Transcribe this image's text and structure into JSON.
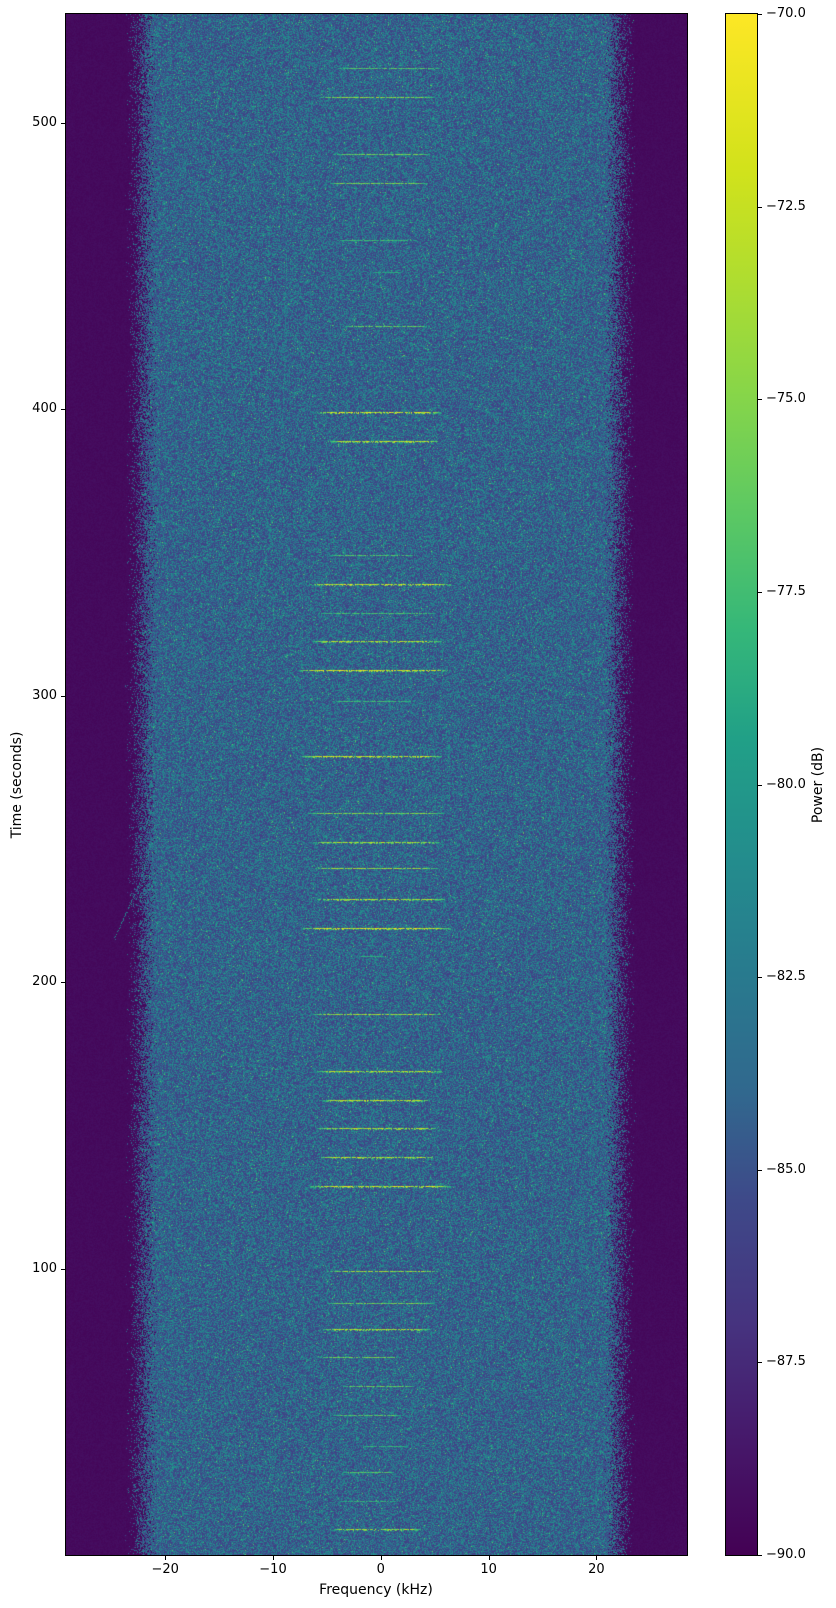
{
  "chart_data": {
    "type": "heatmap",
    "title": "",
    "xlabel": "Frequency (kHz)",
    "ylabel": "Time (seconds)",
    "colorbar_label": "Power (dB)",
    "colormap": "viridis",
    "xlim": [
      -29.2,
      28.4
    ],
    "ylim": [
      0,
      538
    ],
    "clim": [
      -90,
      -70
    ],
    "x_ticks": [
      {
        "v": -20,
        "label": "−20"
      },
      {
        "v": -10,
        "label": "−10"
      },
      {
        "v": 0,
        "label": "0"
      },
      {
        "v": 10,
        "label": "10"
      },
      {
        "v": 20,
        "label": "20"
      }
    ],
    "y_ticks": [
      {
        "v": 100,
        "label": "100"
      },
      {
        "v": 200,
        "label": "200"
      },
      {
        "v": 300,
        "label": "300"
      },
      {
        "v": 400,
        "label": "400"
      },
      {
        "v": 500,
        "label": "500"
      }
    ],
    "colorbar_ticks": [
      {
        "v": -70.0,
        "label": "−70.0"
      },
      {
        "v": -72.5,
        "label": "−72.5"
      },
      {
        "v": -75.0,
        "label": "−75.0"
      },
      {
        "v": -77.5,
        "label": "−77.5"
      },
      {
        "v": -80.0,
        "label": "−80.0"
      },
      {
        "v": -82.5,
        "label": "−82.5"
      },
      {
        "v": -85.0,
        "label": "−85.0"
      },
      {
        "v": -87.5,
        "label": "−87.5"
      },
      {
        "v": -90.0,
        "label": "−90.0"
      }
    ],
    "noise": {
      "floor_db": -85,
      "background_db": -90,
      "band_full_khz": 20.6,
      "band_zero_khz": 23.8
    },
    "bursts": [
      {
        "t": 9,
        "f0": -4.4,
        "f1": 3.6,
        "a": 0.75
      },
      {
        "t": 19,
        "f0": -3.8,
        "f1": 1.5,
        "a": 0.3
      },
      {
        "t": 29,
        "f0": -3.5,
        "f1": 1.1,
        "a": 0.45
      },
      {
        "t": 38,
        "f0": -1.7,
        "f1": 2.4,
        "a": 0.3
      },
      {
        "t": 49,
        "f0": -4.4,
        "f1": 1.8,
        "a": 0.45
      },
      {
        "t": 59,
        "f0": -3.5,
        "f1": 3.0,
        "a": 0.5
      },
      {
        "t": 69,
        "f0": -5.6,
        "f1": 1.8,
        "a": 0.55
      },
      {
        "t": 79,
        "f0": -5.4,
        "f1": 4.5,
        "a": 0.8
      },
      {
        "t": 88,
        "f0": -5.0,
        "f1": 4.8,
        "a": 0.55
      },
      {
        "t": 99,
        "f0": -5.0,
        "f1": 5.2,
        "a": 0.7
      },
      {
        "t": 129,
        "f0": -6.6,
        "f1": 6.4,
        "a": 0.9
      },
      {
        "t": 139,
        "f0": -5.6,
        "f1": 4.8,
        "a": 0.85
      },
      {
        "t": 149,
        "f0": -5.9,
        "f1": 5.2,
        "a": 0.8
      },
      {
        "t": 159,
        "f0": -5.4,
        "f1": 4.5,
        "a": 0.85
      },
      {
        "t": 169,
        "f0": -5.9,
        "f1": 5.7,
        "a": 0.8
      },
      {
        "t": 189,
        "f0": -6.3,
        "f1": 5.5,
        "a": 0.7
      },
      {
        "t": 209,
        "f0": -2.2,
        "f1": 0.2,
        "a": 0.25
      },
      {
        "t": 219,
        "f0": -7.2,
        "f1": 6.4,
        "a": 0.95
      },
      {
        "t": 229,
        "f0": -5.9,
        "f1": 5.9,
        "a": 0.8
      },
      {
        "t": 240,
        "f0": -6.1,
        "f1": 5.2,
        "a": 0.7
      },
      {
        "t": 249,
        "f0": -6.3,
        "f1": 5.5,
        "a": 0.75
      },
      {
        "t": 259,
        "f0": -6.8,
        "f1": 5.9,
        "a": 0.6
      },
      {
        "t": 279,
        "f0": -7.3,
        "f1": 5.6,
        "a": 0.9
      },
      {
        "t": 298,
        "f0": -4.5,
        "f1": 3.1,
        "a": 0.35
      },
      {
        "t": 309,
        "f0": -7.5,
        "f1": 6.1,
        "a": 0.95
      },
      {
        "t": 319,
        "f0": -6.3,
        "f1": 5.6,
        "a": 0.8
      },
      {
        "t": 329,
        "f0": -5.8,
        "f1": 5.0,
        "a": 0.4
      },
      {
        "t": 339,
        "f0": -6.6,
        "f1": 6.4,
        "a": 0.9
      },
      {
        "t": 349,
        "f0": -4.7,
        "f1": 3.3,
        "a": 0.45
      },
      {
        "t": 389,
        "f0": -4.7,
        "f1": 5.2,
        "a": 0.85
      },
      {
        "t": 399,
        "f0": -5.9,
        "f1": 5.5,
        "a": 0.95
      },
      {
        "t": 429,
        "f0": -3.5,
        "f1": 4.5,
        "a": 0.5
      },
      {
        "t": 448,
        "f0": -0.7,
        "f1": 1.8,
        "a": 0.25
      },
      {
        "t": 459,
        "f0": -4.1,
        "f1": 3.3,
        "a": 0.35
      },
      {
        "t": 479,
        "f0": -4.7,
        "f1": 4.3,
        "a": 0.6
      },
      {
        "t": 489,
        "f0": -4.4,
        "f1": 4.5,
        "a": 0.55
      },
      {
        "t": 509,
        "f0": -5.6,
        "f1": 4.8,
        "a": 0.65
      },
      {
        "t": 519,
        "f0": -4.1,
        "f1": 5.5,
        "a": 0.45
      }
    ],
    "drift_track": [
      [
        215,
        -24.8
      ],
      [
        233,
        -22.6
      ],
      [
        255,
        -20.8
      ],
      [
        281,
        -18.3
      ],
      [
        305,
        -15.2
      ],
      [
        326,
        -12.4
      ],
      [
        350,
        -10.6
      ],
      [
        378,
        -9.5
      ],
      [
        400,
        -9.1
      ],
      [
        424,
        -8.9
      ],
      [
        470,
        -8.75
      ],
      [
        511,
        -8.6
      ],
      [
        538,
        -8.55
      ]
    ],
    "viridis_stops": [
      [
        0.0,
        68,
        1,
        84
      ],
      [
        0.08,
        70,
        26,
        108
      ],
      [
        0.15,
        70,
        51,
        127
      ],
      [
        0.23,
        62,
        73,
        137
      ],
      [
        0.3,
        49,
        104,
        142
      ],
      [
        0.38,
        40,
        123,
        142
      ],
      [
        0.45,
        35,
        140,
        141
      ],
      [
        0.53,
        33,
        160,
        135
      ],
      [
        0.6,
        53,
        183,
        121
      ],
      [
        0.68,
        94,
        201,
        98
      ],
      [
        0.75,
        133,
        213,
        74
      ],
      [
        0.83,
        176,
        221,
        47
      ],
      [
        0.9,
        210,
        226,
        27
      ],
      [
        1.0,
        253,
        231,
        37
      ]
    ]
  }
}
